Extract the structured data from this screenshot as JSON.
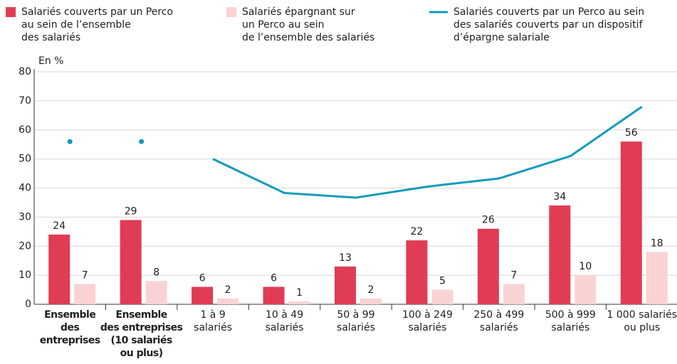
{
  "chart_data": {
    "type": "bar",
    "y_axis_label": "En %",
    "categories": [
      "Ensemble\ndes\nentreprises",
      "Ensemble\ndes entreprises\n(10 salariés\nou plus)",
      "1 à 9\nsalariés",
      "10 à 49\nsalariés",
      "50 à 99\nsalariés",
      "100 à 249\nsalariés",
      "250 à 499\nsalariés",
      "500 à 999\nsalariés",
      "1 000 salariés\nou plus"
    ],
    "category_bold": [
      true,
      true,
      false,
      false,
      false,
      false,
      false,
      false,
      false
    ],
    "series": [
      {
        "name": "Salariés couverts par un Perco\nau sein de l’ensemble\ndes salariés",
        "color": "#e03c55",
        "type": "bar",
        "values": [
          24,
          29,
          6,
          6,
          13,
          22,
          26,
          34,
          56
        ]
      },
      {
        "name": "Salariés épargnant sur\nun Perco au sein\nde l’ensemble des salariés",
        "color": "#f9d3d3",
        "type": "bar",
        "values": [
          7,
          8,
          2,
          1,
          2,
          5,
          7,
          10,
          18
        ]
      },
      {
        "name": "Salariés couverts par un Perco au sein\ndes salariés couverts par un dispositif\nd’épargne salariale",
        "color": "#0e9bbb",
        "type": "line",
        "values": [
          56,
          56,
          50,
          38.3,
          36.7,
          40.5,
          43.3,
          51,
          68
        ],
        "point_style": [
          "dot",
          "dot",
          "line",
          "line",
          "line",
          "line",
          "line",
          "line",
          "line"
        ]
      }
    ],
    "ylim": [
      0,
      80
    ],
    "yticks": [
      0,
      10,
      20,
      30,
      40,
      50,
      60,
      70,
      80
    ],
    "grid": true
  }
}
